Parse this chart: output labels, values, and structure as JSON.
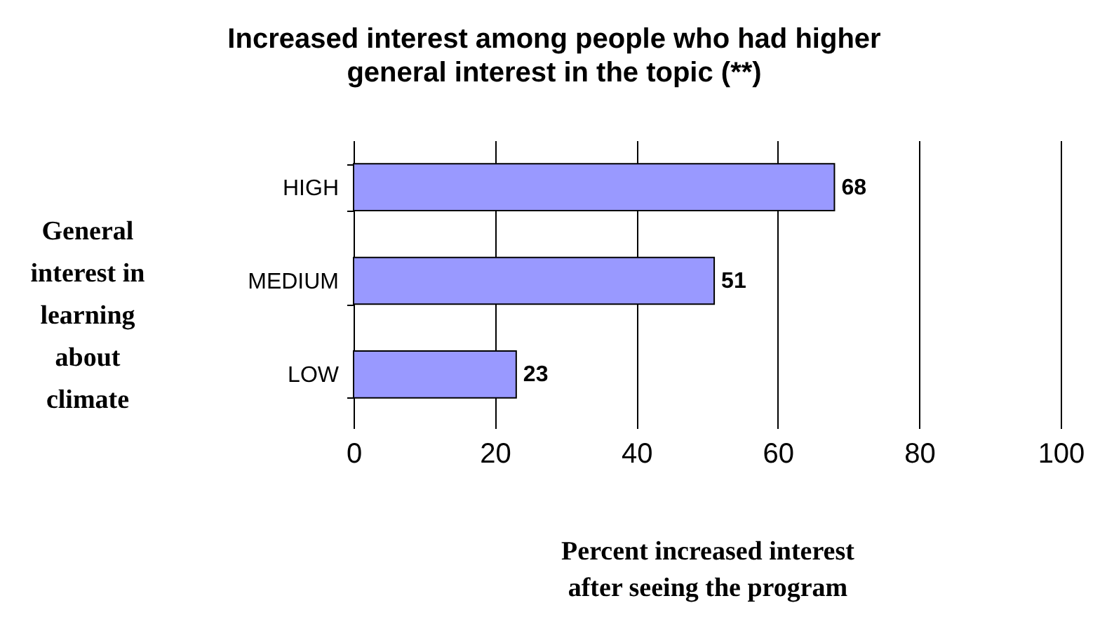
{
  "chart_data": {
    "type": "bar",
    "orientation": "horizontal",
    "title": "Increased interest among people who had higher general interest in the topic (**)",
    "xlabel": "Percent increased interest after seeing the program",
    "ylabel": "General interest in learning about climate",
    "categories": [
      "HIGH",
      "MEDIUM",
      "LOW"
    ],
    "values": [
      68,
      51,
      23
    ],
    "color": "#9999ff",
    "xlim": [
      0,
      100
    ],
    "xticks": [
      0,
      20,
      40,
      60,
      80,
      100
    ],
    "grid": "x",
    "data_labels": true
  }
}
